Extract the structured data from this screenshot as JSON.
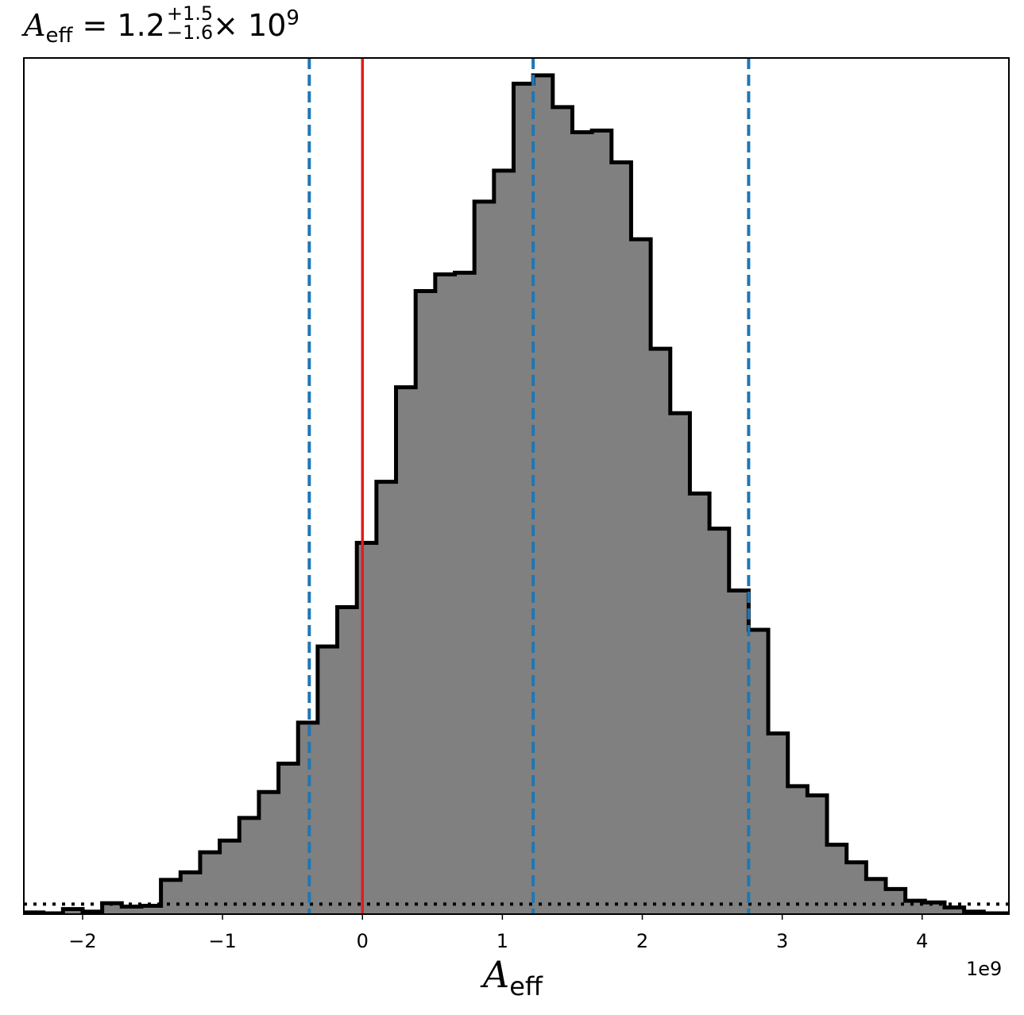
{
  "chart_data": {
    "type": "bar",
    "title": {
      "symbol": "A",
      "subscript": "eff",
      "equals": "= 1.2",
      "upper": "+1.5",
      "lower": "−1.6",
      "times": "× 10",
      "exponent": "9"
    },
    "xlabel": {
      "symbol": "A",
      "subscript": "eff"
    },
    "x_offset_label": "1e9",
    "xlim": [
      -2.42,
      4.62
    ],
    "ylim": [
      0,
      1.0
    ],
    "x_ticks": [
      -2,
      -1,
      0,
      1,
      2,
      3,
      4
    ],
    "x_tick_labels": [
      "−2",
      "−1",
      "0",
      "1",
      "2",
      "3",
      "4"
    ],
    "y_ticks_visible": false,
    "bin_edges": [
      -2.42,
      -2.28,
      -2.14,
      -2.0,
      -1.86,
      -1.72,
      -1.58,
      -1.44,
      -1.3,
      -1.16,
      -1.02,
      -0.88,
      -0.74,
      -0.6,
      -0.46,
      -0.32,
      -0.18,
      -0.04,
      0.1,
      0.24,
      0.38,
      0.52,
      0.66,
      0.8,
      0.94,
      1.08,
      1.22,
      1.36,
      1.5,
      1.64,
      1.78,
      1.92,
      2.06,
      2.2,
      2.34,
      2.48,
      2.62,
      2.76,
      2.9,
      3.04,
      3.18,
      3.32,
      3.46,
      3.6,
      3.74,
      3.88,
      4.02,
      4.16,
      4.3,
      4.44,
      4.58,
      4.72
    ],
    "values": [
      0.002,
      0.001,
      0.006,
      0.003,
      0.013,
      0.009,
      0.01,
      0.041,
      0.05,
      0.074,
      0.088,
      0.115,
      0.146,
      0.18,
      0.229,
      0.32,
      0.367,
      0.444,
      0.517,
      0.63,
      0.745,
      0.765,
      0.767,
      0.852,
      0.889,
      0.993,
      1.003,
      0.965,
      0.935,
      0.937,
      0.899,
      0.807,
      0.676,
      0.599,
      0.503,
      0.461,
      0.387,
      0.34,
      0.216,
      0.153,
      0.142,
      0.083,
      0.062,
      0.042,
      0.03,
      0.016,
      0.014,
      0.008,
      0.003,
      0.001,
      0.001
    ],
    "hist_fill": "#808080",
    "hist_edge": "#000000",
    "truth_line": {
      "x": 0,
      "color": "#e41a1c"
    },
    "quantile_lines": {
      "x": [
        -0.38,
        1.22,
        2.76
      ],
      "color": "#1f77b4",
      "style": "dashed"
    },
    "prior_line": {
      "y": 0.012,
      "color": "#000000",
      "style": "dotted"
    },
    "grid": false
  }
}
